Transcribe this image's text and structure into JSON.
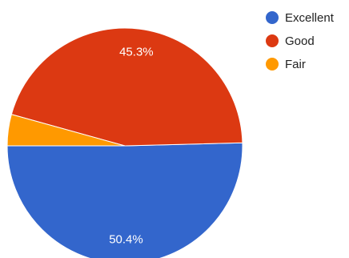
{
  "chart_data": {
    "type": "pie",
    "title": "",
    "slices": [
      {
        "label": "Excellent",
        "value": 50.4,
        "display": "50.4%",
        "color": "#3366cc"
      },
      {
        "label": "Good",
        "value": 45.3,
        "display": "45.3%",
        "color": "#dc3912"
      },
      {
        "label": "Fair",
        "value": 4.3,
        "display": "",
        "color": "#ff9900"
      }
    ],
    "legend_position": "top-right",
    "start_direction": "west",
    "direction": "counterclockwise"
  }
}
